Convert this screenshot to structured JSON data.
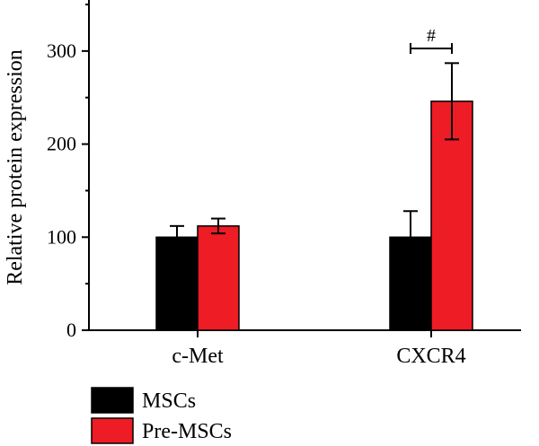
{
  "chart_data": {
    "type": "bar",
    "categories": [
      "c-Met",
      "CXCR4"
    ],
    "series": [
      {
        "name": "MSCs",
        "color": "#000000",
        "values": [
          100,
          100
        ],
        "errors": [
          12,
          28
        ]
      },
      {
        "name": "Pre-MSCs",
        "color": "#ee1c25",
        "values": [
          112,
          246
        ],
        "errors": [
          8,
          41
        ]
      }
    ],
    "title": "",
    "xlabel": "",
    "ylabel": "Relative protein expression",
    "ylim": [
      0,
      350
    ],
    "yticks": [
      0,
      100,
      200,
      300
    ],
    "grid": false,
    "legend_position": "bottom-left",
    "annotations": [
      {
        "text": "#",
        "category": "CXCR4",
        "between": [
          "MSCs",
          "Pre-MSCs"
        ]
      }
    ]
  }
}
